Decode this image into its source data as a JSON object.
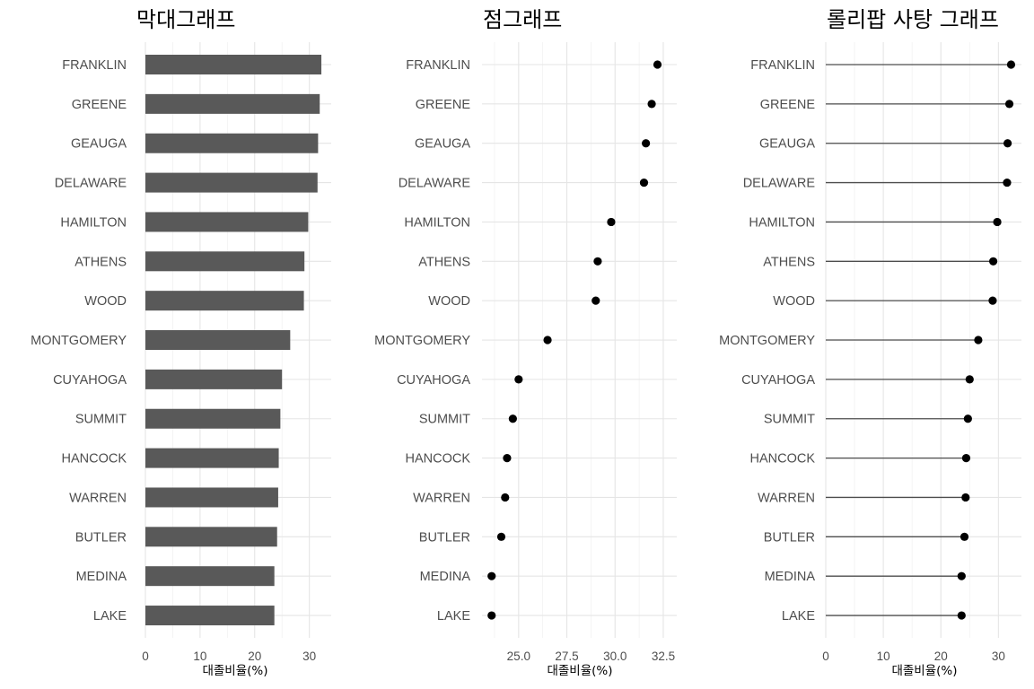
{
  "chart_data": [
    {
      "type": "bar",
      "title": "막대그래프",
      "xlabel": "대졸비율(%)",
      "ylabel": "",
      "orientation": "horizontal",
      "xlim": [
        0,
        34
      ],
      "xticks": [
        0,
        10,
        20,
        30
      ],
      "tick_labels": [
        "0",
        "10",
        "20",
        "30"
      ],
      "bar_color": "#595959",
      "grid": true,
      "categories": [
        "FRANKLIN",
        "GREENE",
        "GEAUGA",
        "DELAWARE",
        "HAMILTON",
        "ATHENS",
        "WOOD",
        "MONTGOMERY",
        "CUYAHOGA",
        "SUMMIT",
        "HANCOCK",
        "WARREN",
        "BUTLER",
        "MEDINA",
        "LAKE"
      ],
      "values": [
        32.2,
        31.9,
        31.6,
        31.5,
        29.8,
        29.1,
        29.0,
        26.5,
        25.0,
        24.7,
        24.4,
        24.3,
        24.1,
        23.6,
        23.6
      ]
    },
    {
      "type": "scatter",
      "title": "점그래프",
      "xlabel": "대졸비율(%)",
      "ylabel": "",
      "xlim": [
        23.1,
        33.2
      ],
      "xticks": [
        25.0,
        27.5,
        30.0,
        32.5
      ],
      "tick_labels": [
        "25.0",
        "27.5",
        "30.0",
        "32.5"
      ],
      "point_color": "#000000",
      "grid": true,
      "categories": [
        "FRANKLIN",
        "GREENE",
        "GEAUGA",
        "DELAWARE",
        "HAMILTON",
        "ATHENS",
        "WOOD",
        "MONTGOMERY",
        "CUYAHOGA",
        "SUMMIT",
        "HANCOCK",
        "WARREN",
        "BUTLER",
        "MEDINA",
        "LAKE"
      ],
      "values": [
        32.2,
        31.9,
        31.6,
        31.5,
        29.8,
        29.1,
        29.0,
        26.5,
        25.0,
        24.7,
        24.4,
        24.3,
        24.1,
        23.6,
        23.6
      ]
    },
    {
      "type": "lollipop",
      "title": "롤리팝 사탕 그래프",
      "xlabel": "대졸비율(%)",
      "ylabel": "",
      "xlim": [
        0,
        34
      ],
      "xticks": [
        0,
        10,
        20,
        30
      ],
      "tick_labels": [
        "0",
        "10",
        "20",
        "30"
      ],
      "line_color": "#4d4d4d",
      "point_color": "#000000",
      "grid": true,
      "categories": [
        "FRANKLIN",
        "GREENE",
        "GEAUGA",
        "DELAWARE",
        "HAMILTON",
        "ATHENS",
        "WOOD",
        "MONTGOMERY",
        "CUYAHOGA",
        "SUMMIT",
        "HANCOCK",
        "WARREN",
        "BUTLER",
        "MEDINA",
        "LAKE"
      ],
      "values": [
        32.2,
        31.9,
        31.6,
        31.5,
        29.8,
        29.1,
        29.0,
        26.5,
        25.0,
        24.7,
        24.4,
        24.3,
        24.1,
        23.6,
        23.6
      ]
    }
  ]
}
